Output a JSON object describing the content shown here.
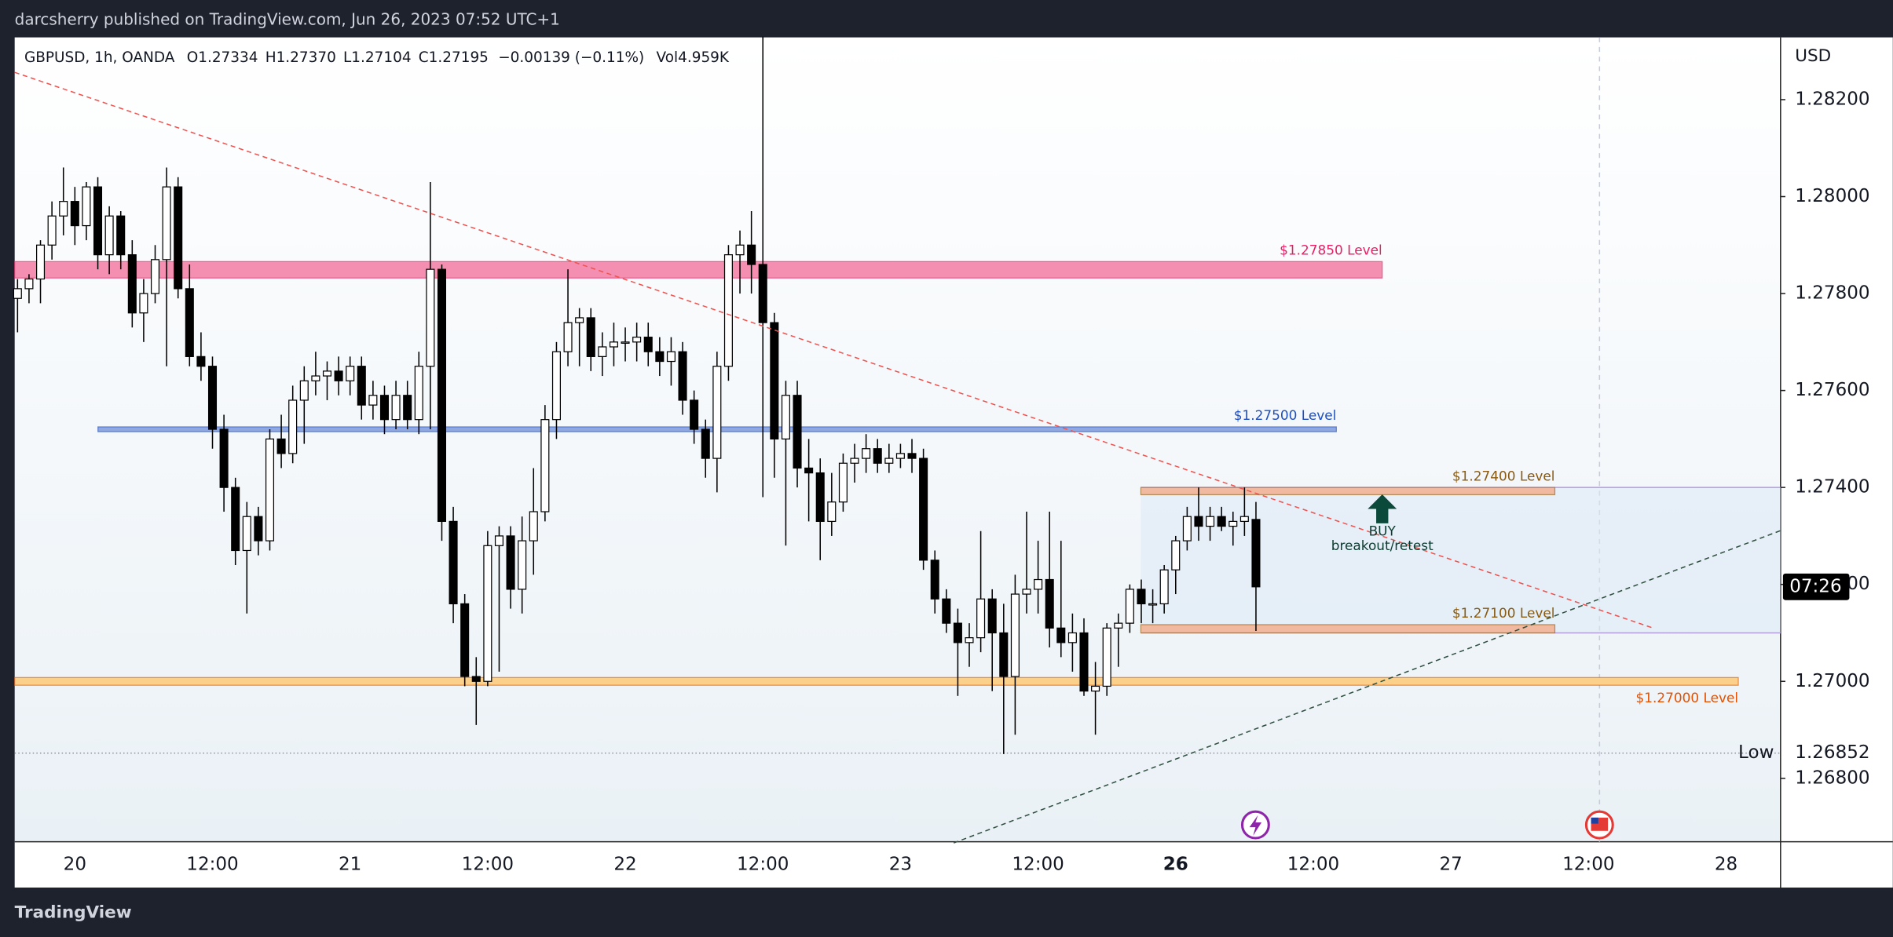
{
  "header": {
    "title": "darcsherry published on TradingView.com, Jun 26, 2023 07:52 UTC+1"
  },
  "footer": {
    "brand": "TradingView"
  },
  "chart_data": {
    "type": "candlestick",
    "legend": [
      "GBPUSD, 1h, OANDA",
      "O1.27334",
      "H1.27370",
      "L1.27104",
      "C1.27195",
      "−0.00139 (−0.11%)",
      "Vol4.959K"
    ],
    "currency": "USD",
    "up_color": "#ffffff",
    "down_color": "#000000",
    "wick_color": "#000000",
    "ylim": [
      1.266692,
      1.283284
    ],
    "yticks": [
      {
        "value": 1.282,
        "label": "1.28200"
      },
      {
        "value": 1.28,
        "label": "1.28000"
      },
      {
        "value": 1.278,
        "label": "1.27800"
      },
      {
        "value": 1.276,
        "label": "1.27600"
      },
      {
        "value": 1.274,
        "label": "1.27400"
      },
      {
        "value": 1.272,
        "label": "1.27200"
      },
      {
        "value": 1.27,
        "label": "1.27000"
      },
      {
        "value": 1.268,
        "label": "1.26800"
      }
    ],
    "categories": [
      null,
      null,
      null,
      null,
      null,
      "20",
      null,
      null,
      null,
      null,
      null,
      null,
      null,
      null,
      null,
      null,
      null,
      "12:00",
      null,
      null,
      null,
      null,
      null,
      null,
      null,
      null,
      null,
      null,
      null,
      "21",
      null,
      null,
      null,
      null,
      null,
      null,
      null,
      null,
      null,
      null,
      null,
      "12:00",
      null,
      null,
      null,
      null,
      null,
      null,
      null,
      null,
      null,
      null,
      null,
      "22",
      null,
      null,
      null,
      null,
      null,
      null,
      null,
      null,
      null,
      null,
      null,
      "12:00",
      null,
      null,
      null,
      null,
      null,
      null,
      null,
      null,
      null,
      null,
      null,
      "23",
      null,
      null,
      null,
      null,
      null,
      null,
      null,
      null,
      null,
      null,
      null,
      "12:00",
      null,
      null,
      null,
      null,
      null,
      null,
      null,
      null,
      null,
      null,
      null,
      "26",
      null,
      null,
      null,
      null,
      null,
      null,
      null,
      null,
      null,
      null,
      null,
      "12:00",
      null,
      null,
      null,
      null,
      null,
      null,
      null,
      null,
      null,
      null,
      null,
      "27",
      null,
      null,
      null,
      null,
      null,
      null,
      null,
      null,
      null,
      null,
      null,
      "12:00",
      null,
      null,
      null,
      null,
      null,
      null,
      null,
      null,
      null,
      null,
      null,
      "28",
      null,
      null,
      null,
      null
    ],
    "ohlc": [
      [
        1.2779,
        1.2783,
        1.2772,
        1.2781
      ],
      [
        1.2781,
        1.2784,
        1.2778,
        1.2783
      ],
      [
        1.2783,
        1.2791,
        1.2778,
        1.279
      ],
      [
        1.279,
        1.2799,
        1.2787,
        1.2796
      ],
      [
        1.2796,
        1.2806,
        1.2792,
        1.2799
      ],
      [
        1.2799,
        1.2802,
        1.279,
        1.2794
      ],
      [
        1.2794,
        1.2803,
        1.2791,
        1.2802
      ],
      [
        1.2802,
        1.2804,
        1.2785,
        1.2788
      ],
      [
        1.2788,
        1.2798,
        1.2784,
        1.2796
      ],
      [
        1.2796,
        1.2797,
        1.2785,
        1.2788
      ],
      [
        1.2788,
        1.2791,
        1.2773,
        1.2776
      ],
      [
        1.2776,
        1.2783,
        1.277,
        1.278
      ],
      [
        1.278,
        1.279,
        1.2778,
        1.2787
      ],
      [
        1.2787,
        1.2806,
        1.2765,
        1.2802
      ],
      [
        1.2802,
        1.2804,
        1.2779,
        1.2781
      ],
      [
        1.2781,
        1.2786,
        1.2765,
        1.2767
      ],
      [
        1.2767,
        1.2772,
        1.2762,
        1.2765
      ],
      [
        1.2765,
        1.2767,
        1.2748,
        1.2752
      ],
      [
        1.2752,
        1.2755,
        1.2735,
        1.274
      ],
      [
        1.274,
        1.2742,
        1.2724,
        1.2727
      ],
      [
        1.2727,
        1.2737,
        1.2714,
        1.2734
      ],
      [
        1.2734,
        1.2736,
        1.2726,
        1.2729
      ],
      [
        1.2729,
        1.2752,
        1.2727,
        1.275
      ],
      [
        1.275,
        1.2755,
        1.2744,
        1.2747
      ],
      [
        1.2747,
        1.2761,
        1.2745,
        1.2758
      ],
      [
        1.2758,
        1.2765,
        1.2749,
        1.2762
      ],
      [
        1.2762,
        1.2768,
        1.2759,
        1.2763
      ],
      [
        1.2763,
        1.2766,
        1.2758,
        1.2764
      ],
      [
        1.2764,
        1.2767,
        1.2759,
        1.2762
      ],
      [
        1.2762,
        1.2767,
        1.2759,
        1.2765
      ],
      [
        1.2765,
        1.2767,
        1.2754,
        1.2757
      ],
      [
        1.2757,
        1.2762,
        1.2754,
        1.2759
      ],
      [
        1.2759,
        1.2761,
        1.2751,
        1.2754
      ],
      [
        1.2754,
        1.2762,
        1.2752,
        1.2759
      ],
      [
        1.2759,
        1.2762,
        1.2752,
        1.2754
      ],
      [
        1.2754,
        1.2768,
        1.2751,
        1.2765
      ],
      [
        1.2765,
        1.2803,
        1.2752,
        1.2785
      ],
      [
        1.2785,
        1.2786,
        1.2729,
        1.2733
      ],
      [
        1.2733,
        1.2736,
        1.2712,
        1.2716
      ],
      [
        1.2716,
        1.2718,
        1.2699,
        1.2701
      ],
      [
        1.2701,
        1.2705,
        1.2691,
        1.27
      ],
      [
        1.27,
        1.2731,
        1.2699,
        1.2728
      ],
      [
        1.2728,
        1.2732,
        1.2702,
        1.273
      ],
      [
        1.273,
        1.2732,
        1.2715,
        1.2719
      ],
      [
        1.2719,
        1.2734,
        1.2714,
        1.2729
      ],
      [
        1.2729,
        1.2744,
        1.2722,
        1.2735
      ],
      [
        1.2735,
        1.2757,
        1.2733,
        1.2754
      ],
      [
        1.2754,
        1.277,
        1.275,
        1.2768
      ],
      [
        1.2768,
        1.2785,
        1.2765,
        1.2774
      ],
      [
        1.2774,
        1.2777,
        1.2765,
        1.2775
      ],
      [
        1.2775,
        1.2777,
        1.2764,
        1.2767
      ],
      [
        1.2767,
        1.2772,
        1.2763,
        1.2769
      ],
      [
        1.2769,
        1.2774,
        1.2765,
        1.277
      ],
      [
        1.277,
        1.2773,
        1.2766,
        1.277
      ],
      [
        1.277,
        1.2774,
        1.2766,
        1.2771
      ],
      [
        1.2771,
        1.2774,
        1.2765,
        1.2768
      ],
      [
        1.2768,
        1.2771,
        1.2763,
        1.2766
      ],
      [
        1.2766,
        1.2771,
        1.2761,
        1.2768
      ],
      [
        1.2768,
        1.277,
        1.2755,
        1.2758
      ],
      [
        1.2758,
        1.276,
        1.2749,
        1.2752
      ],
      [
        1.2752,
        1.2754,
        1.2742,
        1.2746
      ],
      [
        1.2746,
        1.2768,
        1.2739,
        1.2765
      ],
      [
        1.2765,
        1.279,
        1.2762,
        1.2788
      ],
      [
        1.2788,
        1.2793,
        1.278,
        1.279
      ],
      [
        1.279,
        1.2797,
        1.278,
        1.2786
      ],
      [
        1.2786,
        1.2833,
        1.2738,
        1.2774
      ],
      [
        1.2774,
        1.2776,
        1.2742,
        1.275
      ],
      [
        1.275,
        1.2762,
        1.2728,
        1.2759
      ],
      [
        1.2759,
        1.2762,
        1.274,
        1.2744
      ],
      [
        1.2744,
        1.275,
        1.2733,
        1.2743
      ],
      [
        1.2743,
        1.2746,
        1.2725,
        1.2733
      ],
      [
        1.2733,
        1.2743,
        1.273,
        1.2737
      ],
      [
        1.2737,
        1.2747,
        1.2735,
        1.2745
      ],
      [
        1.2745,
        1.2749,
        1.2741,
        1.2746
      ],
      [
        1.2746,
        1.2751,
        1.2743,
        1.2748
      ],
      [
        1.2748,
        1.275,
        1.2743,
        1.2745
      ],
      [
        1.2745,
        1.2749,
        1.2743,
        1.2746
      ],
      [
        1.2746,
        1.2749,
        1.2744,
        1.2747
      ],
      [
        1.2747,
        1.275,
        1.2743,
        1.2746
      ],
      [
        1.2746,
        1.2748,
        1.2723,
        1.2725
      ],
      [
        1.2725,
        1.2727,
        1.2714,
        1.2717
      ],
      [
        1.2717,
        1.2719,
        1.271,
        1.2712
      ],
      [
        1.2712,
        1.2715,
        1.2697,
        1.2708
      ],
      [
        1.2708,
        1.2712,
        1.2703,
        1.2709
      ],
      [
        1.2709,
        1.2731,
        1.2706,
        1.2717
      ],
      [
        1.2717,
        1.2719,
        1.2698,
        1.271
      ],
      [
        1.271,
        1.2716,
        1.2685,
        1.2701
      ],
      [
        1.2701,
        1.2722,
        1.2689,
        1.2718
      ],
      [
        1.2718,
        1.2735,
        1.2714,
        1.2719
      ],
      [
        1.2719,
        1.2729,
        1.2714,
        1.2721
      ],
      [
        1.2721,
        1.2735,
        1.2707,
        1.2711
      ],
      [
        1.2711,
        1.2729,
        1.2705,
        1.2708
      ],
      [
        1.2708,
        1.2714,
        1.2702,
        1.271
      ],
      [
        1.271,
        1.2713,
        1.2697,
        1.2698
      ],
      [
        1.2698,
        1.2704,
        1.2689,
        1.2699
      ],
      [
        1.2699,
        1.2712,
        1.2697,
        1.2711
      ],
      [
        1.2711,
        1.2714,
        1.2703,
        1.2712
      ],
      [
        1.2712,
        1.272,
        1.271,
        1.2719
      ],
      [
        1.2719,
        1.2721,
        1.2712,
        1.2716
      ],
      [
        1.2716,
        1.2719,
        1.2712,
        1.2716
      ],
      [
        1.2716,
        1.2724,
        1.2714,
        1.2723
      ],
      [
        1.2723,
        1.273,
        1.2718,
        1.2729
      ],
      [
        1.2729,
        1.2736,
        1.2727,
        1.2734
      ],
      [
        1.2734,
        1.274,
        1.2729,
        1.2732
      ],
      [
        1.2732,
        1.2736,
        1.2729,
        1.2734
      ],
      [
        1.2734,
        1.2736,
        1.2731,
        1.2732
      ],
      [
        1.2732,
        1.2735,
        1.2728,
        1.2733
      ],
      [
        1.2733,
        1.274,
        1.273,
        1.2734
      ],
      [
        1.27334,
        1.2737,
        1.27104,
        1.27195
      ],
      null,
      null,
      null,
      null,
      null,
      null,
      null,
      null,
      null,
      null,
      null,
      null,
      null,
      null,
      null,
      null,
      null,
      null,
      null,
      null,
      null,
      null,
      null,
      null,
      null,
      null,
      null,
      null,
      null,
      null,
      null,
      null,
      null,
      null,
      null,
      null,
      null,
      null,
      null,
      null,
      null,
      null,
      null,
      null,
      null
    ],
    "levels": [
      {
        "label": "$1.27850 Level",
        "lo": 1.27832,
        "hi": 1.27866,
        "color": "#f48fb1",
        "text_color": "#e91e63"
      },
      {
        "label": "$1.27500 Level",
        "lo": 1.27515,
        "hi": 1.27525,
        "color": "#90a8e0",
        "text_color": "#1e4fc0"
      },
      {
        "label": "$1.27400 Level",
        "lo": 1.27385,
        "hi": 1.274,
        "color": "#f0b9a0",
        "text_color": "#8a5a10"
      },
      {
        "label": "$1.27100 Level",
        "lo": 1.271,
        "hi": 1.27117,
        "color": "#f0b9a0",
        "text_color": "#8a5a10"
      },
      {
        "label": "$1.27000 Level",
        "lo": 1.26992,
        "hi": 1.27008,
        "color": "#fad08a",
        "text_color": "#e65100"
      }
    ],
    "annotation": {
      "title": "BUY",
      "text": "breakout/retest"
    },
    "low_marker": {
      "label": "Low",
      "value": {
        "value": 1.26852,
        "label": "1.26852"
      }
    },
    "countdown": "07:26"
  }
}
